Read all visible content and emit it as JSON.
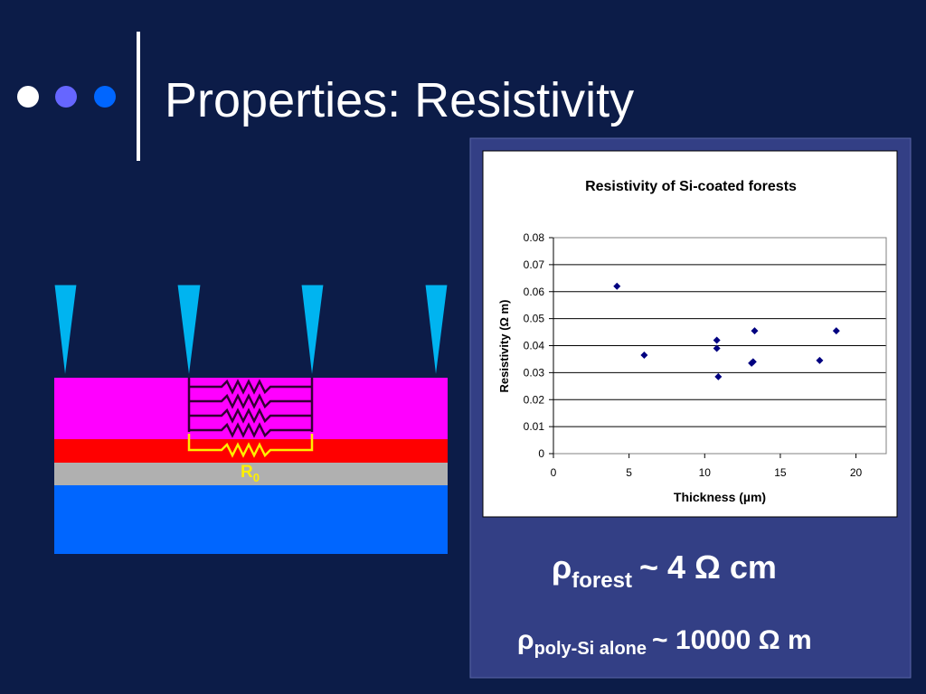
{
  "slide_title": "Properties: Resistivity",
  "diagram": {
    "resistor_label": {
      "symbol": "R",
      "subscript": "0"
    }
  },
  "formulas": [
    {
      "symbol": "ρ",
      "subscript": "forest",
      "text": "~ 4 Ω cm"
    },
    {
      "symbol": "ρ",
      "subscript": "poly-Si alone",
      "text": "~ 10000 Ω m"
    }
  ],
  "chart_data": {
    "type": "scatter",
    "title": "Resistivity of Si-coated forests",
    "x_label": "Thickness (µm)",
    "y_label": "Resistivity (Ω m)",
    "x": [
      4.2,
      6.0,
      10.8,
      10.8,
      10.9,
      13.1,
      13.2,
      13.3,
      17.6,
      18.7
    ],
    "values": [
      0.062,
      0.0365,
      0.042,
      0.039,
      0.0285,
      0.0335,
      0.034,
      0.0455,
      0.0345,
      0.0455
    ],
    "color": "#000080",
    "xlim": [
      0,
      22
    ],
    "xticks": [
      0,
      5,
      10,
      15,
      20
    ],
    "ylim": [
      0,
      0.08
    ],
    "yticks": [
      0,
      0.01,
      0.02,
      0.03,
      0.04,
      0.05,
      0.06,
      0.07,
      0.08
    ],
    "grid": true
  }
}
